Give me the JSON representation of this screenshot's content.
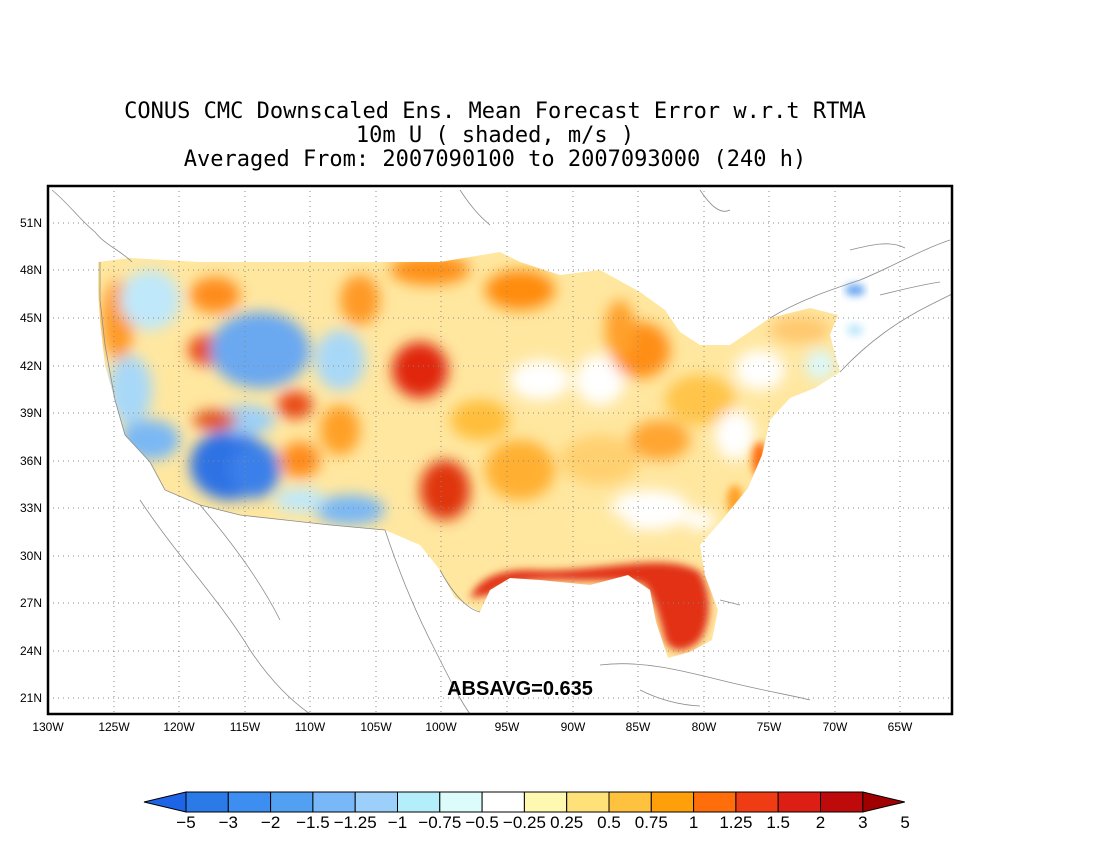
{
  "figure": {
    "title_line1": "CONUS CMC Downscaled Ens. Mean Forecast Error w.r.t RTMA",
    "title_line2": "10m U ( shaded, m/s )",
    "title_line3": "Averaged From: 2007090100 to 2007093000 (240 h)",
    "annotation": "ABSAVG=0.635"
  },
  "map": {
    "lon_ticks": [
      "130W",
      "125W",
      "120W",
      "115W",
      "110W",
      "105W",
      "100W",
      "95W",
      "90W",
      "85W",
      "80W",
      "75W",
      "70W",
      "65W"
    ],
    "lat_ticks": [
      "51N",
      "48N",
      "45N",
      "42N",
      "39N",
      "36N",
      "33N",
      "30N",
      "27N",
      "24N",
      "21N"
    ],
    "grid": "dotted",
    "shaded_variable": "10m U forecast error",
    "units": "m/s"
  },
  "colorbar": {
    "labels": [
      "−5",
      "−3",
      "−2",
      "−1.5",
      "−1.25",
      "−1",
      "−0.75",
      "−0.5",
      "−0.25",
      "0.25",
      "0.5",
      "0.75",
      "1",
      "1.25",
      "1.5",
      "2",
      "3",
      "5"
    ],
    "colors": [
      "#1e64e6",
      "#2a7ae8",
      "#3c8ef0",
      "#52a0f2",
      "#78b8f8",
      "#9cd0fa",
      "#b4eefa",
      "#dcfcfc",
      "#ffffff",
      "#fff8b0",
      "#ffe17a",
      "#ffc23e",
      "#ffa00a",
      "#ff6e0a",
      "#f03c14",
      "#dc1e14",
      "#be0a0a",
      "#a00000"
    ]
  }
}
